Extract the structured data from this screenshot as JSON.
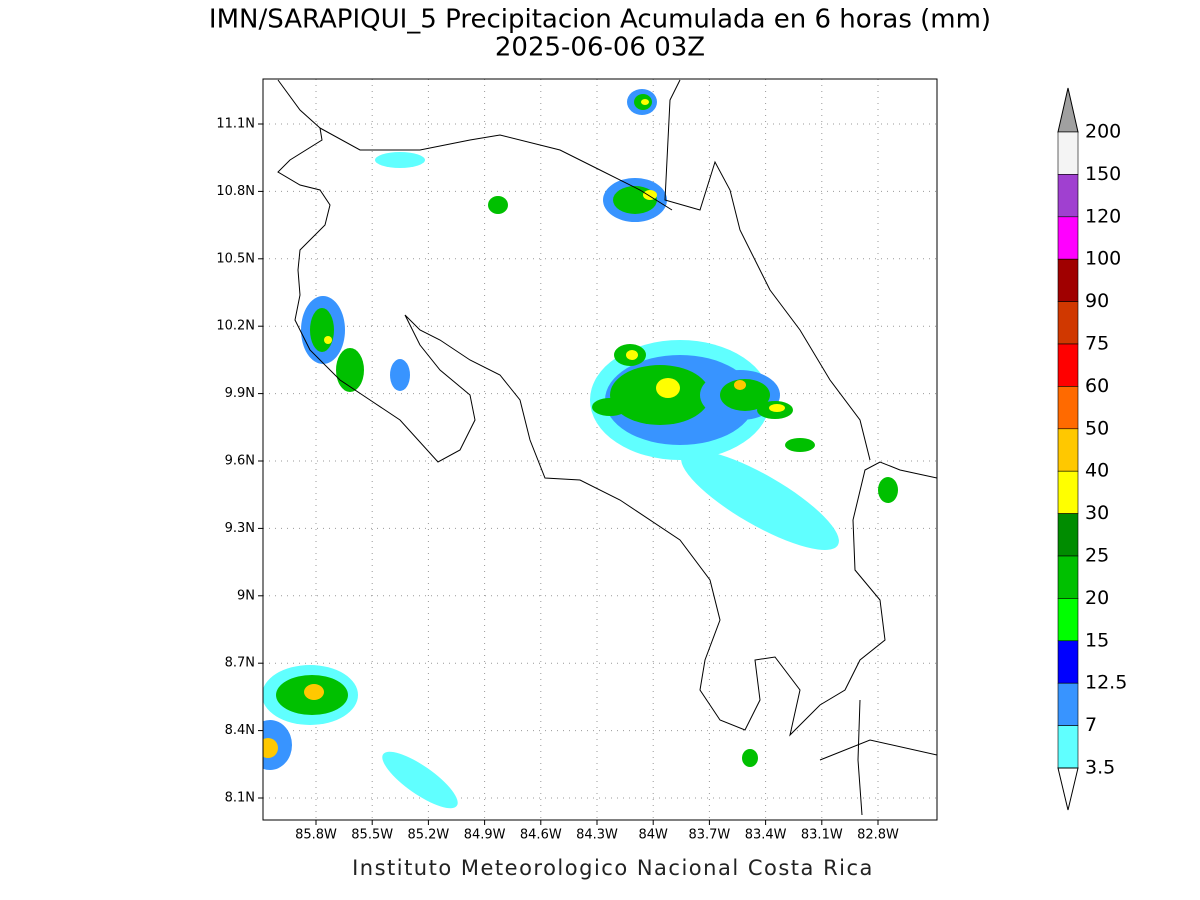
{
  "map": {
    "title": [
      "IMN/SARAPIQUI_5 Precipitacion Acumulada en 6 horas (mm)",
      "2025-06-06 03Z"
    ],
    "lat_ticks": [
      "11.1N",
      "10.8N",
      "10.5N",
      "10.2N",
      "9.9N",
      "9.6N",
      "9.3N",
      "9N",
      "8.7N",
      "8.4N",
      "8.1N"
    ],
    "lon_ticks": [
      "85.8W",
      "85.5W",
      "85.2W",
      "84.9W",
      "84.6W",
      "84.3W",
      "84W",
      "83.7W",
      "83.4W",
      "83.1W",
      "82.8W"
    ],
    "colorbar": {
      "labels": [
        "200",
        "150",
        "120",
        "100",
        "90",
        "75",
        "60",
        "50",
        "40",
        "30",
        "25",
        "20",
        "15",
        "12.5",
        "7",
        "3.5"
      ],
      "colors": [
        "#f4f4f4",
        "#a040d0",
        "#ff00ff",
        "#a00000",
        "#d03800",
        "#ff0000",
        "#ff6a00",
        "#ffc800",
        "#ffff00",
        "#008c00",
        "#00c000",
        "#00ff00",
        "#0000ff",
        "#3894ff",
        "#60ffff"
      ],
      "above_color": "#a0a0a0",
      "below_color": "#ffffff"
    },
    "footer": "Instituto Meteorologico Nacional Costa Rica"
  }
}
